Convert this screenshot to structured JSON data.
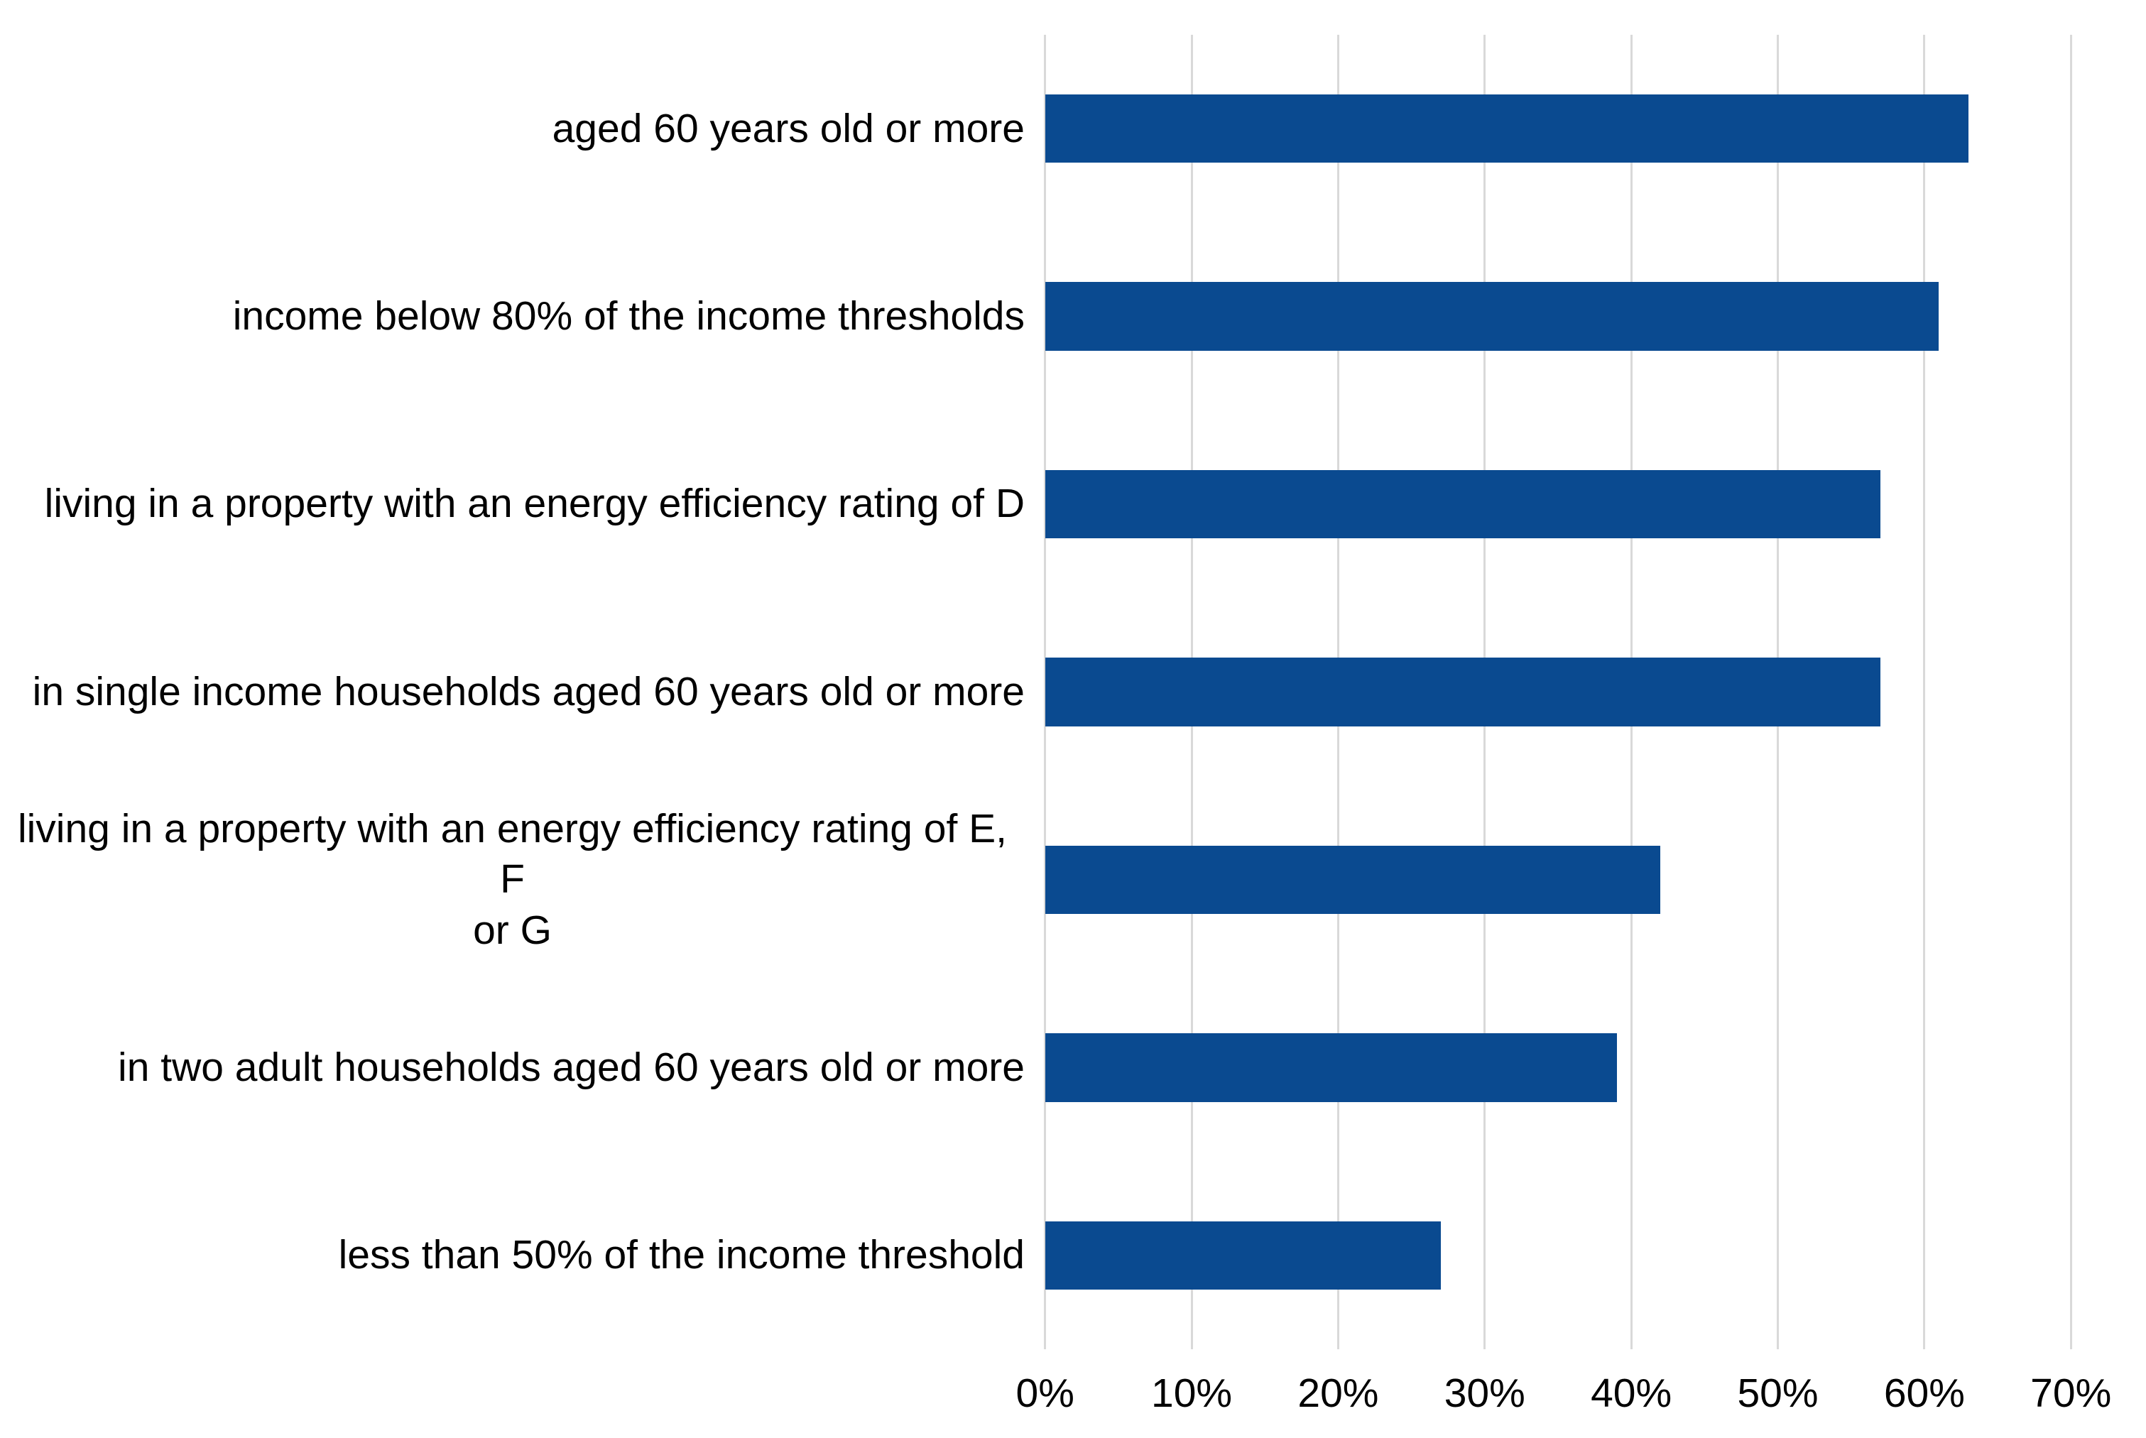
{
  "chart_data": {
    "type": "bar",
    "orientation": "horizontal",
    "title": "",
    "xlabel": "",
    "ylabel": "",
    "categories": [
      "aged 60 years old or more",
      "income below 80% of the income thresholds",
      "living in a property with an energy efficiency rating of D",
      "in single income households aged 60 years old or more",
      "living in a property with an energy efficiency rating of E, F or G",
      "in two adult households aged 60 years old or more",
      "less than 50% of the income threshold"
    ],
    "category_display_lines": {
      "4": [
        "living in a property with an energy efficiency rating of E, F",
        "or G"
      ]
    },
    "values": [
      63,
      61,
      57,
      57,
      42,
      39,
      27
    ],
    "value_unit": "%",
    "xlim": [
      0,
      70
    ],
    "x_tick_labels": [
      "0%",
      "10%",
      "20%",
      "30%",
      "40%",
      "50%",
      "60%",
      "70%"
    ],
    "grid": true,
    "legend": false,
    "bar_color": "#0A4A90",
    "gridline_color": "#D9D9D9",
    "text_color": "#000000",
    "background_color": "#FFFFFF"
  }
}
